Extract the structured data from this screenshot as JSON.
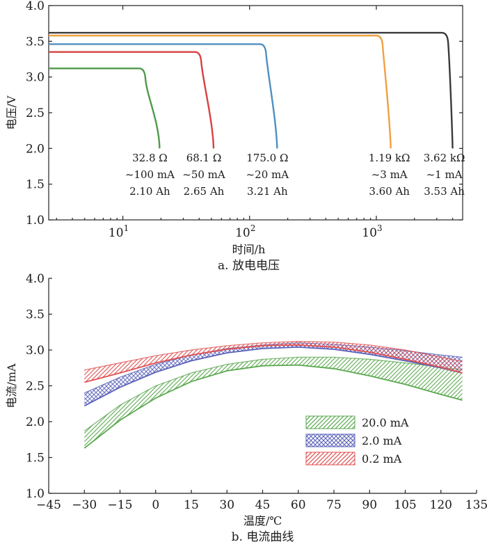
{
  "chart_data": [
    {
      "type": "line",
      "caption": "a. 放电电压",
      "xlabel": "时间/h",
      "ylabel": "电压/V",
      "x_scale": "log",
      "xlim": [
        2.6,
        4800
      ],
      "ylim": [
        1.0,
        4.0
      ],
      "x_ticks": [
        {
          "value": 10,
          "base": "10",
          "exp": "1"
        },
        {
          "value": 100,
          "base": "10",
          "exp": "2"
        },
        {
          "value": 1000,
          "base": "10",
          "exp": "3"
        }
      ],
      "y_ticks": [
        "1.0",
        "1.5",
        "2.0",
        "2.5",
        "3.0",
        "3.5",
        "4.0"
      ],
      "series": [
        {
          "color": "#4f9a4a",
          "plateau_v": 3.12,
          "knee_h": 14.5,
          "end_h": 19.5,
          "end_v": 2.0,
          "labels": [
            "32.8 Ω",
            "~100 mA",
            "2.10 Ah"
          ]
        },
        {
          "color": "#d94040",
          "plateau_v": 3.35,
          "knee_h": 40,
          "end_h": 52,
          "end_v": 2.0,
          "labels": [
            "68.1 Ω",
            "~50 mA",
            "2.65 Ah"
          ]
        },
        {
          "color": "#4f8fbf",
          "plateau_v": 3.46,
          "knee_h": 130,
          "end_h": 165,
          "end_v": 2.0,
          "labels": [
            "175.0 Ω",
            "~20 mA",
            "3.21 Ah"
          ]
        },
        {
          "color": "#f0a040",
          "plateau_v": 3.58,
          "knee_h": 1080,
          "end_h": 1300,
          "end_v": 2.0,
          "labels": [
            "1.19 kΩ",
            "~3 mA",
            "3.60 Ah"
          ]
        },
        {
          "color": "#3a3a3a",
          "plateau_v": 3.62,
          "knee_h": 3550,
          "end_h": 4000,
          "end_v": 2.0,
          "labels": [
            "3.62 kΩ",
            "~1 mA",
            "3.53 Ah"
          ]
        }
      ]
    },
    {
      "type": "area",
      "caption": "b. 电流曲线",
      "xlabel": "温度/℃",
      "ylabel": "电流/mA",
      "xlim": [
        -45,
        135
      ],
      "ylim": [
        1.0,
        4.0
      ],
      "x_ticks": [
        "−45",
        "−30",
        "−15",
        "0",
        "15",
        "30",
        "45",
        "60",
        "75",
        "90",
        "105",
        "120",
        "135"
      ],
      "y_ticks": [
        "1.0",
        "1.5",
        "2.0",
        "2.5",
        "3.0",
        "3.5",
        "4.0"
      ],
      "legend_position": "right",
      "series": [
        {
          "name": "20.0 mA",
          "color": "#5aa84e",
          "pattern": "diag",
          "upper": [
            [
              -30,
              1.87
            ],
            [
              -15,
              2.23
            ],
            [
              0,
              2.5
            ],
            [
              15,
              2.68
            ],
            [
              30,
              2.8
            ],
            [
              45,
              2.87
            ],
            [
              60,
              2.9
            ],
            [
              75,
              2.9
            ],
            [
              90,
              2.87
            ],
            [
              105,
              2.82
            ],
            [
              120,
              2.76
            ],
            [
              129,
              2.72
            ]
          ],
          "lower": [
            [
              -30,
              1.63
            ],
            [
              -15,
              2.02
            ],
            [
              0,
              2.33
            ],
            [
              15,
              2.56
            ],
            [
              30,
              2.71
            ],
            [
              45,
              2.78
            ],
            [
              60,
              2.79
            ],
            [
              75,
              2.74
            ],
            [
              90,
              2.64
            ],
            [
              105,
              2.52
            ],
            [
              120,
              2.38
            ],
            [
              129,
              2.3
            ]
          ]
        },
        {
          "name": "2.0 mA",
          "color": "#5a62b8",
          "pattern": "cross",
          "upper": [
            [
              -30,
              2.4
            ],
            [
              -15,
              2.62
            ],
            [
              0,
              2.8
            ],
            [
              15,
              2.93
            ],
            [
              30,
              3.02
            ],
            [
              45,
              3.07
            ],
            [
              60,
              3.1
            ],
            [
              75,
              3.08
            ],
            [
              90,
              3.04
            ],
            [
              105,
              2.99
            ],
            [
              120,
              2.93
            ],
            [
              129,
              2.9
            ]
          ],
          "lower": [
            [
              -30,
              2.22
            ],
            [
              -15,
              2.48
            ],
            [
              0,
              2.69
            ],
            [
              15,
              2.85
            ],
            [
              30,
              2.96
            ],
            [
              45,
              3.02
            ],
            [
              60,
              3.04
            ],
            [
              75,
              3.01
            ],
            [
              90,
              2.94
            ],
            [
              105,
              2.85
            ],
            [
              120,
              2.75
            ],
            [
              129,
              2.68
            ]
          ]
        },
        {
          "name": "0.2 mA",
          "color": "#e05050",
          "pattern": "diag",
          "upper": [
            [
              -30,
              2.72
            ],
            [
              -15,
              2.82
            ],
            [
              0,
              2.92
            ],
            [
              15,
              3.0
            ],
            [
              30,
              3.06
            ],
            [
              45,
              3.1
            ],
            [
              60,
              3.12
            ],
            [
              75,
              3.11
            ],
            [
              90,
              3.07
            ],
            [
              105,
              3.0
            ],
            [
              120,
              2.9
            ],
            [
              129,
              2.84
            ]
          ],
          "lower": [
            [
              -30,
              2.55
            ],
            [
              -15,
              2.68
            ],
            [
              0,
              2.82
            ],
            [
              15,
              2.93
            ],
            [
              30,
              3.01
            ],
            [
              45,
              3.06
            ],
            [
              60,
              3.07
            ],
            [
              75,
              3.04
            ],
            [
              90,
              2.97
            ],
            [
              105,
              2.87
            ],
            [
              120,
              2.76
            ],
            [
              129,
              2.68
            ]
          ]
        }
      ]
    }
  ]
}
